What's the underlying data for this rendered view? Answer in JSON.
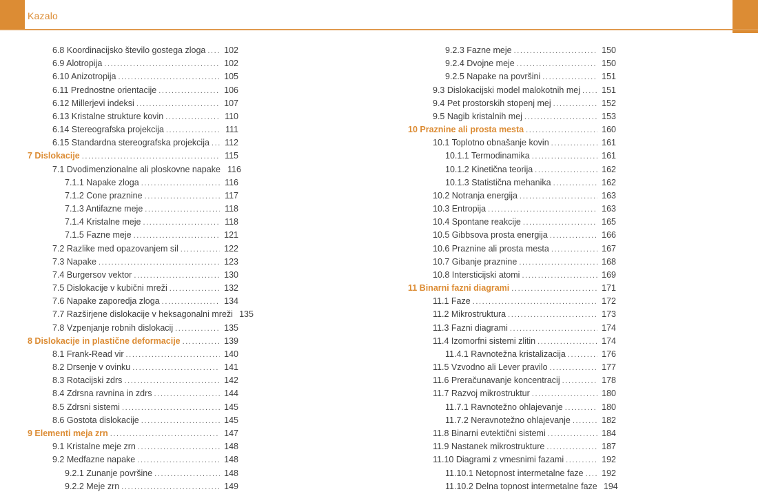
{
  "header": {
    "title": "Kazalo"
  },
  "colors": {
    "accent": "#DC8C34",
    "rule": "#E09A4E",
    "text": "#3F3F3F",
    "dots": "#595959"
  },
  "columns": {
    "left": [
      {
        "level": 2,
        "label": "6.8 Koordinacijsko število gostega zloga",
        "page": "102"
      },
      {
        "level": 2,
        "label": "6.9 Alotropija",
        "page": "102"
      },
      {
        "level": 2,
        "label": "6.10 Anizotropija",
        "page": "105"
      },
      {
        "level": 2,
        "label": "6.11 Prednostne orientacije",
        "page": "106"
      },
      {
        "level": 2,
        "label": "6.12 Millerjevi indeksi",
        "page": "107"
      },
      {
        "level": 2,
        "label": "6.13 Kristalne strukture kovin",
        "page": "110"
      },
      {
        "level": 2,
        "label": "6.14 Stereografska projekcija",
        "page": "111"
      },
      {
        "level": 2,
        "label": "6.15 Standardna stereografska projekcija",
        "page": "112"
      },
      {
        "level": 1,
        "label": "7 Dislokacije",
        "page": "115"
      },
      {
        "level": 2,
        "label": "7.1 Dvodimenzionalne ali ploskovne napake",
        "page": "116"
      },
      {
        "level": 3,
        "label": "7.1.1 Napake zloga",
        "page": "116"
      },
      {
        "level": 3,
        "label": "7.1.2 Cone praznine",
        "page": "117"
      },
      {
        "level": 3,
        "label": "7.1.3 Antifazne meje",
        "page": "118"
      },
      {
        "level": 3,
        "label": "7.1.4 Kristalne meje",
        "page": "118"
      },
      {
        "level": 3,
        "label": "7.1.5 Fazne meje",
        "page": "121"
      },
      {
        "level": 2,
        "label": "7.2 Razlike med opazovanjem sil",
        "page": "122"
      },
      {
        "level": 2,
        "label": "7.3 Napake",
        "page": "123"
      },
      {
        "level": 2,
        "label": "7.4 Burgersov vektor",
        "page": "130"
      },
      {
        "level": 2,
        "label": "7.5 Dislokacije v kubični mreži",
        "page": "132"
      },
      {
        "level": 2,
        "label": "7.6 Napake zaporedja zloga",
        "page": "134"
      },
      {
        "level": 2,
        "label": "7.7 Razširjene dislokacije v heksagonalni mreži",
        "page": "135"
      },
      {
        "level": 2,
        "label": "7.8 Vzpenjanje robnih dislokacij",
        "page": "135"
      },
      {
        "level": 1,
        "label": "8 Dislokacije in plastične deformacije",
        "page": "139"
      },
      {
        "level": 2,
        "label": "8.1 Frank-Read vir",
        "page": "140"
      },
      {
        "level": 2,
        "label": "8.2 Drsenje v ovinku",
        "page": "141"
      },
      {
        "level": 2,
        "label": "8.3 Rotacijski zdrs",
        "page": "142"
      },
      {
        "level": 2,
        "label": "8.4 Zdrsna ravnina in zdrs",
        "page": "144"
      },
      {
        "level": 2,
        "label": "8.5 Zdrsni sistemi",
        "page": "145"
      },
      {
        "level": 2,
        "label": "8.6 Gostota dislokacije",
        "page": "145"
      },
      {
        "level": 1,
        "label": "9 Elementi meja zrn",
        "page": "147"
      },
      {
        "level": 2,
        "label": "9.1 Kristalne meje zrn",
        "page": "148"
      },
      {
        "level": 2,
        "label": "9.2 Medfazne napake",
        "page": "148"
      },
      {
        "level": 3,
        "label": "9.2.1 Zunanje površine",
        "page": "148"
      },
      {
        "level": 3,
        "label": "9.2.2 Meje zrn",
        "page": "149"
      }
    ],
    "right": [
      {
        "level": 3,
        "label": "9.2.3 Fazne meje",
        "page": "150"
      },
      {
        "level": 3,
        "label": "9.2.4 Dvojne meje",
        "page": "150"
      },
      {
        "level": 3,
        "label": "9.2.5 Napake na površini",
        "page": "151"
      },
      {
        "level": 2,
        "label": "9.3 Dislokacijski model malokotnih mej",
        "page": "151"
      },
      {
        "level": 2,
        "label": "9.4 Pet prostorskih stopenj mej",
        "page": "152"
      },
      {
        "level": 2,
        "label": "9.5 Nagib kristalnih mej",
        "page": "153"
      },
      {
        "level": 1,
        "label": "10 Praznine ali prosta mesta",
        "page": "160"
      },
      {
        "level": 2,
        "label": "10.1 Toplotno obnašanje kovin",
        "page": "161"
      },
      {
        "level": 3,
        "label": "10.1.1 Termodinamika",
        "page": "161"
      },
      {
        "level": 3,
        "label": "10.1.2 Kinetična teorija",
        "page": "162"
      },
      {
        "level": 3,
        "label": "10.1.3 Statistična mehanika",
        "page": "162"
      },
      {
        "level": 2,
        "label": "10.2 Notranja energija",
        "page": "163"
      },
      {
        "level": 2,
        "label": "10.3 Entropija",
        "page": "163"
      },
      {
        "level": 2,
        "label": "10.4 Spontane reakcije",
        "page": "165"
      },
      {
        "level": 2,
        "label": "10.5 Gibbsova prosta energija",
        "page": "166"
      },
      {
        "level": 2,
        "label": "10.6 Praznine ali prosta mesta",
        "page": "167"
      },
      {
        "level": 2,
        "label": "10.7 Gibanje praznine",
        "page": "168"
      },
      {
        "level": 2,
        "label": "10.8 Intersticijski atomi",
        "page": "169"
      },
      {
        "level": 1,
        "label": "11 Binarni fazni diagrami",
        "page": "171"
      },
      {
        "level": 2,
        "label": "11.1 Faze",
        "page": "172"
      },
      {
        "level": 2,
        "label": "11.2 Mikrostruktura",
        "page": "173"
      },
      {
        "level": 2,
        "label": "11.3 Fazni diagrami",
        "page": "174"
      },
      {
        "level": 2,
        "label": "11.4 Izomorfni sistemi zlitin",
        "page": "174"
      },
      {
        "level": 3,
        "label": "11.4.1 Ravnotežna kristalizacija",
        "page": "176"
      },
      {
        "level": 2,
        "label": "11.5 Vzvodno ali Lever pravilo",
        "page": "177"
      },
      {
        "level": 2,
        "label": "11.6 Preračunavanje koncentracij",
        "page": "178"
      },
      {
        "level": 2,
        "label": "11.7 Razvoj mikrostruktur",
        "page": "180"
      },
      {
        "level": 3,
        "label": "11.7.1 Ravnotežno ohlajevanje",
        "page": "180"
      },
      {
        "level": 3,
        "label": "11.7.2 Neravnotežno ohlajevanje",
        "page": "182"
      },
      {
        "level": 2,
        "label": "11.8 Binarni evtektični sistemi",
        "page": "184"
      },
      {
        "level": 2,
        "label": "11.9 Nastanek mikrostrukture",
        "page": "187"
      },
      {
        "level": 2,
        "label": "11.10 Diagrami z vmesnimi fazami",
        "page": "192"
      },
      {
        "level": 3,
        "label": "11.10.1 Netopnost intermetalne faze",
        "page": "192"
      },
      {
        "level": 3,
        "label": "11.10.2 Delna topnost intermetalne faze",
        "page": "194"
      }
    ]
  }
}
